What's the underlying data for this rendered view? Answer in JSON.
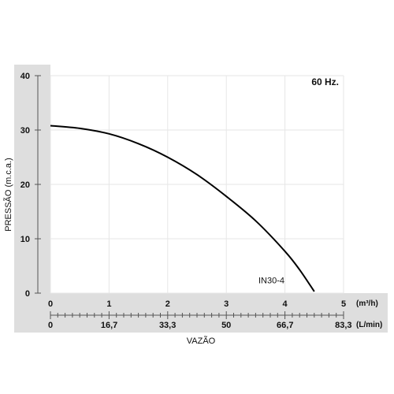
{
  "chart_data": {
    "type": "line",
    "annotation": "60 Hz.",
    "xlabel": "VAZÃO",
    "ylabel": "PRESSÃO (m.c.a.)",
    "ylim": [
      0,
      40
    ],
    "yticks": [
      0,
      10,
      20,
      30,
      40
    ],
    "grid": true,
    "x_axis_m3h": {
      "unit": "(m³/h)",
      "xlim": [
        0,
        5
      ],
      "ticks": [
        0,
        1,
        2,
        3,
        4,
        5
      ],
      "tick_labels": [
        "0",
        "1",
        "2",
        "3",
        "4",
        "5"
      ]
    },
    "x_axis_lmin": {
      "unit": "(L/min)",
      "ticks": [
        0,
        16.7,
        33.3,
        50,
        66.7,
        83.3
      ],
      "tick_labels": [
        "0",
        "16,7",
        "33,3",
        "50",
        "66,7",
        "83,3"
      ]
    },
    "series": [
      {
        "name": "IN30-4",
        "x": [
          0,
          0.5,
          1,
          1.5,
          2,
          2.5,
          3,
          3.5,
          4,
          4.25,
          4.5
        ],
        "y": [
          30.8,
          30.3,
          29.3,
          27.5,
          25.0,
          21.8,
          17.8,
          13.3,
          7.7,
          4.3,
          0.3
        ]
      }
    ],
    "colors": {
      "axis_band": "#dedede",
      "grid": "#e6e6e6",
      "curve": "#000000"
    }
  }
}
